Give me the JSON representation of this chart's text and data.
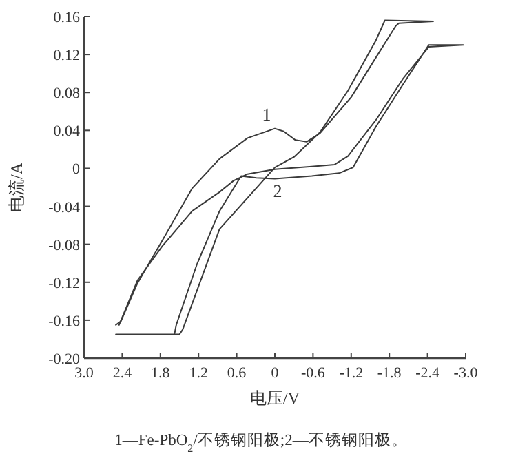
{
  "chart_data": {
    "type": "line",
    "xlabel": "电压/V",
    "ylabel": "电流/A",
    "xlim": [
      3.0,
      -3.0
    ],
    "xticks": [
      {
        "value": 3.0,
        "label": "3.0"
      },
      {
        "value": 2.4,
        "label": "2.4"
      },
      {
        "value": 1.8,
        "label": "1.8"
      },
      {
        "value": 1.2,
        "label": "1.2"
      },
      {
        "value": 0.6,
        "label": "0.6"
      },
      0,
      {
        "value": -0.6,
        "label": "-0.6"
      },
      {
        "value": -1.2,
        "label": "-1.2"
      },
      {
        "value": -1.8,
        "label": "-1.8"
      },
      {
        "value": -2.4,
        "label": "-2.4"
      },
      {
        "value": -3.0,
        "label": "-3.0"
      }
    ],
    "ylim": [
      -0.2,
      0.16
    ],
    "yticks": [
      {
        "value": 0.16,
        "label": "0.16"
      },
      {
        "value": 0.12,
        "label": "0.12"
      },
      {
        "value": 0.08,
        "label": "0.08"
      },
      {
        "value": 0.04,
        "label": "0.04"
      },
      0,
      {
        "value": -0.04,
        "label": "-0.04"
      },
      {
        "value": -0.08,
        "label": "-0.08"
      },
      {
        "value": -0.12,
        "label": "-0.12"
      },
      {
        "value": -0.16,
        "label": "-0.16"
      },
      {
        "value": -0.2,
        "label": "-0.20"
      }
    ],
    "grid": false,
    "marker": "none",
    "line_style": "solid",
    "series": [
      {
        "name": "1",
        "color": "#3a3a3a",
        "x": [
          2.5,
          2.42,
          2.16,
          1.77,
          1.3,
          0.87,
          0.43,
          0,
          -0.14,
          -0.32,
          -0.5,
          -0.71,
          -1.2,
          -1.6,
          -1.9,
          -1.95,
          -2.49,
          -1.73,
          -1.59,
          -1.15,
          -0.71,
          -0.3,
          0,
          0.87,
          1.45,
          1.5,
          2.5
        ],
        "values": [
          -0.165,
          -0.161,
          -0.121,
          -0.076,
          -0.021,
          0.01,
          0.032,
          0.042,
          0.039,
          0.03,
          0.028,
          0.037,
          0.075,
          0.118,
          0.15,
          0.153,
          0.155,
          0.156,
          0.135,
          0.082,
          0.038,
          0.012,
          0.001,
          -0.064,
          -0.17,
          -0.175,
          -0.175
        ]
      },
      {
        "name": "2",
        "color": "#3a3a3a",
        "x": [
          2.45,
          2.16,
          1.77,
          1.3,
          0.87,
          0.65,
          0.43,
          0,
          -0.58,
          -0.94,
          -1.15,
          -1.59,
          -2.02,
          -2.42,
          -2.96,
          -2.42,
          -2.02,
          -1.59,
          -1.23,
          -1.01,
          -0.58,
          0,
          0.29,
          0.53,
          0.87,
          1.23,
          1.55,
          1.58
        ],
        "values": [
          -0.165,
          -0.118,
          -0.082,
          -0.045,
          -0.025,
          -0.013,
          -0.006,
          -0.001,
          0.002,
          0.004,
          0.013,
          0.051,
          0.095,
          0.128,
          0.13,
          0.13,
          0.089,
          0.044,
          0.001,
          -0.005,
          -0.008,
          -0.011,
          -0.01,
          -0.008,
          -0.045,
          -0.102,
          -0.165,
          -0.175
        ]
      }
    ],
    "annotations": [
      "1—Fe-PbO$_{2}$/不锈钢阳极;2—不锈钢阳极。"
    ]
  }
}
